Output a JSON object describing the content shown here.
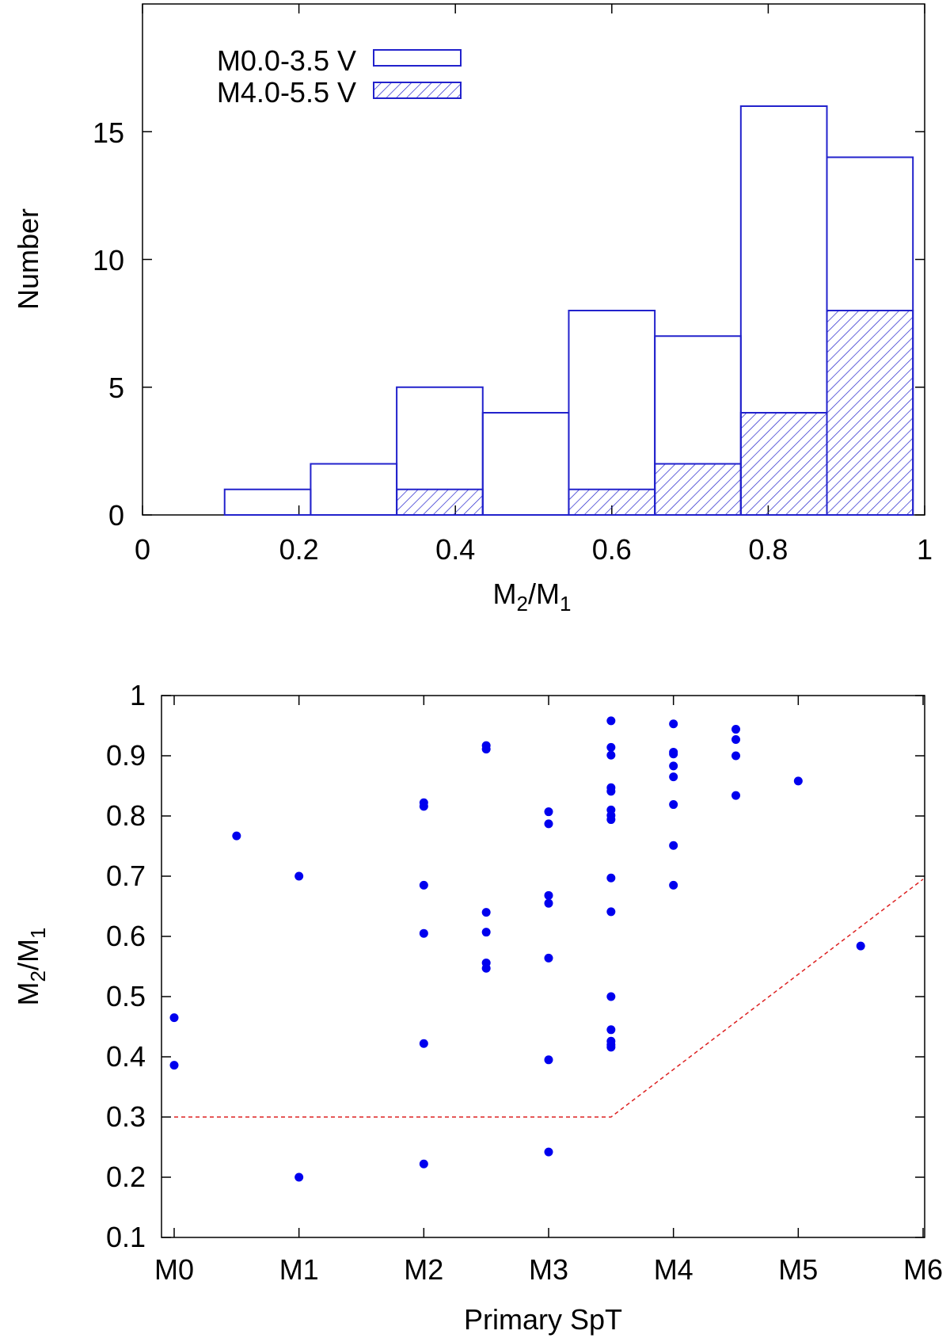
{
  "chart_data": [
    {
      "type": "bar",
      "subtype": "histogram",
      "xlabel_main": "M",
      "xlabel_sub1": "2",
      "xlabel_mid": "/M",
      "xlabel_sub2": "1",
      "ylabel": "Number",
      "xlim": [
        0,
        1
      ],
      "ylim": [
        0,
        20
      ],
      "xticks": [
        "0",
        "0.2",
        "0.4",
        "0.6",
        "0.8",
        "1"
      ],
      "yticks": [
        "0",
        "5",
        "10",
        "15"
      ],
      "bin_edges": [
        0.105,
        0.215,
        0.325,
        0.435,
        0.545,
        0.655,
        0.765,
        0.875,
        0.985
      ],
      "legend_position": "top-left",
      "series": [
        {
          "name": "M0.0-3.5 V",
          "fill": "none",
          "values": [
            1,
            2,
            5,
            4,
            8,
            7,
            16,
            14
          ]
        },
        {
          "name": "M4.0-5.5 V",
          "fill": "hatched",
          "values": [
            0,
            0,
            1,
            0,
            1,
            2,
            4,
            8
          ]
        }
      ],
      "colors": {
        "bar": "#2222cc"
      }
    },
    {
      "type": "scatter",
      "xlabel": "Primary SpT",
      "ylabel_main": "M",
      "ylabel_sub1": "2",
      "ylabel_mid": "/M",
      "ylabel_sub2": "1",
      "xlim": [
        0,
        6
      ],
      "ylim": [
        0.1,
        1.0
      ],
      "xticks": [
        "M0",
        "M1",
        "M2",
        "M3",
        "M4",
        "M5",
        "M6"
      ],
      "yticks": [
        "0.1",
        "0.2",
        "0.3",
        "0.4",
        "0.5",
        "0.6",
        "0.7",
        "0.8",
        "0.9",
        "1"
      ],
      "points": [
        [
          0,
          0.465
        ],
        [
          0,
          0.386
        ],
        [
          0.5,
          0.767
        ],
        [
          1,
          0.7
        ],
        [
          1,
          0.2
        ],
        [
          2,
          0.822
        ],
        [
          2,
          0.816
        ],
        [
          2,
          0.685
        ],
        [
          2,
          0.605
        ],
        [
          2,
          0.422
        ],
        [
          2,
          0.222
        ],
        [
          2.5,
          0.917
        ],
        [
          2.5,
          0.911
        ],
        [
          2.5,
          0.64
        ],
        [
          2.5,
          0.607
        ],
        [
          2.5,
          0.556
        ],
        [
          2.5,
          0.547
        ],
        [
          3,
          0.807
        ],
        [
          3,
          0.787
        ],
        [
          3,
          0.668
        ],
        [
          3,
          0.655
        ],
        [
          3,
          0.564
        ],
        [
          3,
          0.395
        ],
        [
          3,
          0.242
        ],
        [
          3.5,
          0.958
        ],
        [
          3.5,
          0.914
        ],
        [
          3.5,
          0.901
        ],
        [
          3.5,
          0.847
        ],
        [
          3.5,
          0.841
        ],
        [
          3.5,
          0.81
        ],
        [
          3.5,
          0.801
        ],
        [
          3.5,
          0.794
        ],
        [
          3.5,
          0.697
        ],
        [
          3.5,
          0.641
        ],
        [
          3.5,
          0.5
        ],
        [
          3.5,
          0.445
        ],
        [
          3.5,
          0.426
        ],
        [
          3.5,
          0.42
        ],
        [
          3.5,
          0.416
        ],
        [
          4,
          0.953
        ],
        [
          4,
          0.906
        ],
        [
          4,
          0.903
        ],
        [
          4,
          0.883
        ],
        [
          4,
          0.865
        ],
        [
          4,
          0.819
        ],
        [
          4,
          0.751
        ],
        [
          4,
          0.685
        ],
        [
          4.5,
          0.944
        ],
        [
          4.5,
          0.927
        ],
        [
          4.5,
          0.9
        ],
        [
          4.5,
          0.834
        ],
        [
          5,
          0.858
        ],
        [
          5.5,
          0.584
        ]
      ],
      "threshold_line": [
        [
          0,
          0.3
        ],
        [
          3.5,
          0.3
        ],
        [
          6,
          0.695
        ]
      ],
      "colors": {
        "points": "#0000ee",
        "threshold": "#dd2222"
      }
    }
  ],
  "legend": {
    "entry1": "M0.0-3.5 V",
    "entry2": "M4.0-5.5 V"
  }
}
